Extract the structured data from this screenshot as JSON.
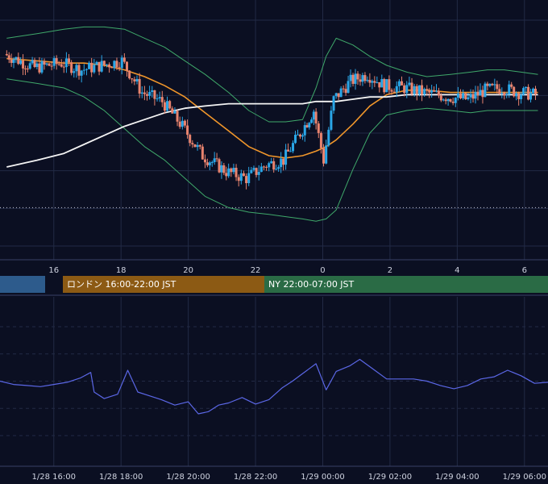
{
  "colors": {
    "background": "#0b0f22",
    "grid": "#222a45",
    "candle_up": "#2aa7e8",
    "candle_down": "#e8836e",
    "bollinger": "#3fa86a",
    "ma_short": "#f0962b",
    "ma_long": "#f4f4f4",
    "oscillator": "#5b67e6",
    "reference_line": "#c8c8d8",
    "axis_text": "#cfd3e0"
  },
  "sessions": [
    {
      "label": "",
      "color": "#2d5b8c"
    },
    {
      "label": "ロンドン 16:00-22:00 JST",
      "color": "#8c5a14"
    },
    {
      "label": "NY 22:00-07:00 JST",
      "color": "#2a6b45"
    }
  ],
  "chart_data": [
    {
      "type": "candlestick",
      "title": "",
      "xlabel": "",
      "ylabel": "",
      "x_ticks": [
        "16",
        "18",
        "20",
        "22",
        "0",
        "2",
        "4",
        "6"
      ],
      "x_range_hours": [
        14.4,
        30.7
      ],
      "y_range_relative": [
        0,
        100
      ],
      "grid": true,
      "reference_line_level": 17,
      "series": [
        {
          "kind": "candles",
          "x_hours": [
            14.6,
            15.5,
            16.3,
            16.9,
            17.5,
            18.1,
            18.7,
            19.3,
            19.9,
            20.5,
            21.2,
            21.8,
            22.4,
            22.9,
            23.4,
            23.8,
            24.1,
            24.4,
            24.9,
            25.4,
            25.9,
            26.5,
            27.1,
            27.8,
            28.4,
            28.9,
            29.4,
            29.9,
            30.4
          ],
          "y_values": [
            85,
            79,
            81,
            78,
            80,
            82,
            68,
            64,
            53,
            40,
            33,
            30,
            36,
            38,
            50,
            60,
            38,
            65,
            73,
            76,
            71,
            70,
            68,
            66,
            65,
            69,
            70,
            68,
            67
          ]
        },
        {
          "kind": "line",
          "name": "",
          "role": "bollinger_upper",
          "y_values": [
            92,
            94,
            96,
            97,
            97,
            96,
            92,
            88,
            82,
            76,
            68,
            60,
            55,
            55,
            56,
            70,
            84,
            92,
            89,
            84,
            80,
            77,
            75,
            76,
            77,
            78,
            78,
            77,
            76
          ]
        },
        {
          "kind": "line",
          "name": "",
          "role": "bollinger_lower",
          "y_values": [
            74,
            72,
            70,
            66,
            60,
            52,
            44,
            38,
            30,
            22,
            17,
            15,
            14,
            13,
            12,
            11,
            12,
            16,
            34,
            50,
            58,
            60,
            61,
            60,
            59,
            60,
            60,
            60,
            60
          ]
        },
        {
          "kind": "line",
          "name": "",
          "role": "moving_average_short",
          "y_values": [
            83,
            82,
            81,
            81,
            80,
            78,
            75,
            71,
            66,
            59,
            51,
            44,
            40,
            39,
            40,
            42,
            44,
            47,
            54,
            62,
            67,
            69,
            69,
            68,
            68,
            68,
            68,
            68,
            68
          ]
        },
        {
          "kind": "line",
          "name": "",
          "role": "moving_average_long",
          "y_values": [
            35,
            38,
            41,
            45,
            49,
            53,
            56,
            59,
            61,
            62,
            63,
            63,
            63,
            63,
            63,
            64,
            64,
            64,
            65,
            66,
            66,
            67,
            67,
            67,
            67,
            67,
            67,
            67,
            67
          ]
        }
      ]
    },
    {
      "type": "line",
      "title": "",
      "xlabel": "",
      "ylabel": "",
      "x_ticks": [
        "1/28 16:00",
        "1/28 18:00",
        "1/28 20:00",
        "1/28 22:00",
        "1/29 00:00",
        "1/29 02:00",
        "1/29 04:00",
        "1/29 06:00"
      ],
      "x_range_hours": [
        14.4,
        30.7
      ],
      "y_range_relative": [
        0,
        100
      ],
      "grid": true,
      "series": [
        {
          "name": "",
          "x_hours": [
            14.4,
            14.8,
            15.2,
            15.6,
            16.0,
            16.4,
            16.8,
            17.1,
            17.2,
            17.5,
            17.9,
            18.2,
            18.5,
            18.8,
            19.2,
            19.6,
            20.0,
            20.3,
            20.6,
            20.9,
            21.2,
            21.6,
            22.0,
            22.4,
            22.8,
            23.1,
            23.4,
            23.8,
            24.1,
            24.4,
            24.8,
            25.1,
            25.5,
            25.9,
            26.3,
            26.7,
            27.1,
            27.5,
            27.9,
            28.3,
            28.7,
            29.1,
            29.5,
            29.9,
            30.3,
            30.7
          ],
          "y_values": [
            50,
            47,
            46,
            45,
            47,
            49,
            53,
            58,
            40,
            34,
            38,
            60,
            40,
            37,
            33,
            28,
            31,
            20,
            22,
            28,
            30,
            35,
            29,
            33,
            44,
            50,
            57,
            66,
            42,
            59,
            64,
            70,
            61,
            52,
            52,
            52,
            50,
            46,
            43,
            46,
            52,
            54,
            60,
            55,
            48,
            49
          ]
        }
      ]
    }
  ]
}
